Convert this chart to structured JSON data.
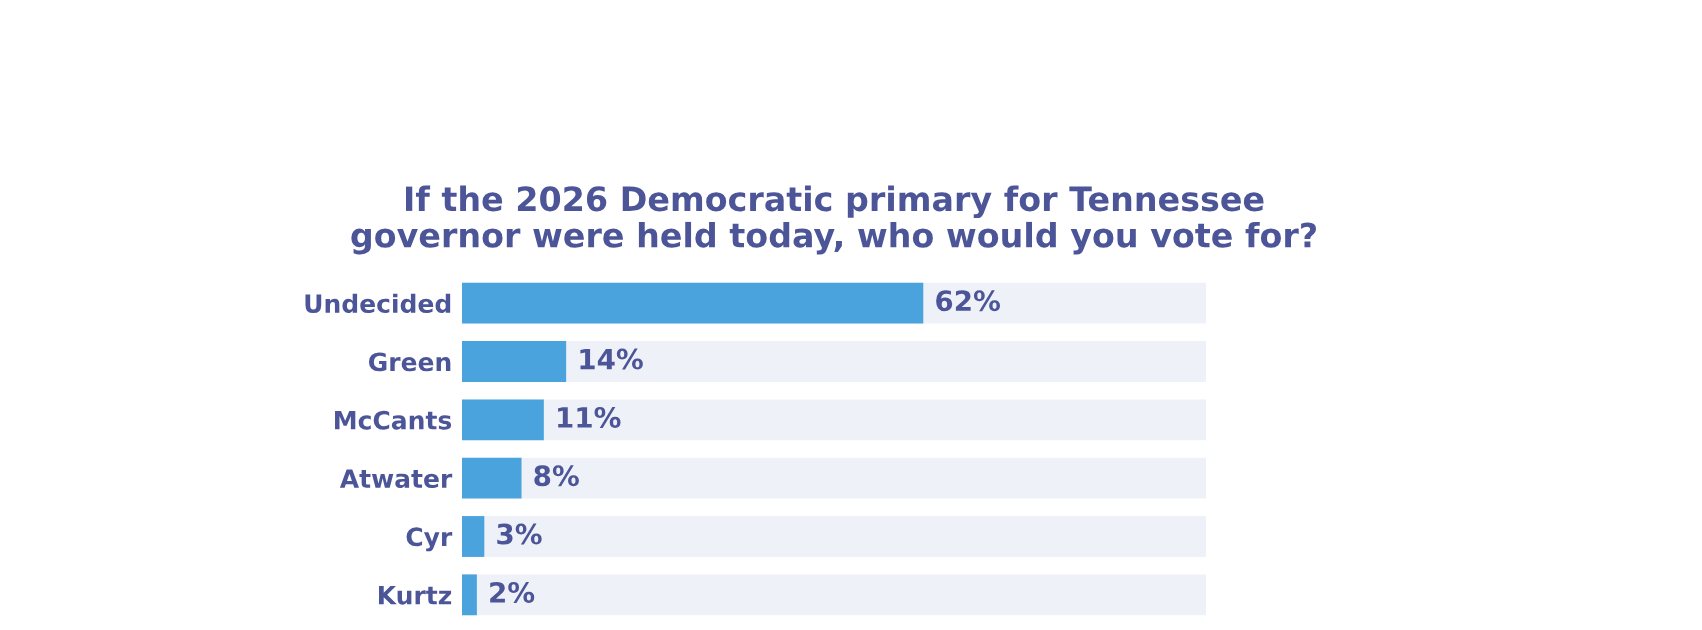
{
  "chart_data": {
    "type": "bar",
    "orientation": "horizontal",
    "title": "If the 2026 Democratic primary for Tennessee\ngovernor were held today, who would you vote for?",
    "categories": [
      "Undecided",
      "Green",
      "McCants",
      "Atwater",
      "Cyr",
      "Kurtz"
    ],
    "values": [
      62,
      14,
      11,
      8,
      3,
      2
    ],
    "value_labels": [
      "62%",
      "14%",
      "11%",
      "8%",
      "3%",
      "2%"
    ],
    "color": "#4ba3dd",
    "xlim": [
      0,
      100
    ],
    "tick_labels": "y",
    "grid": false,
    "legend": false
  }
}
